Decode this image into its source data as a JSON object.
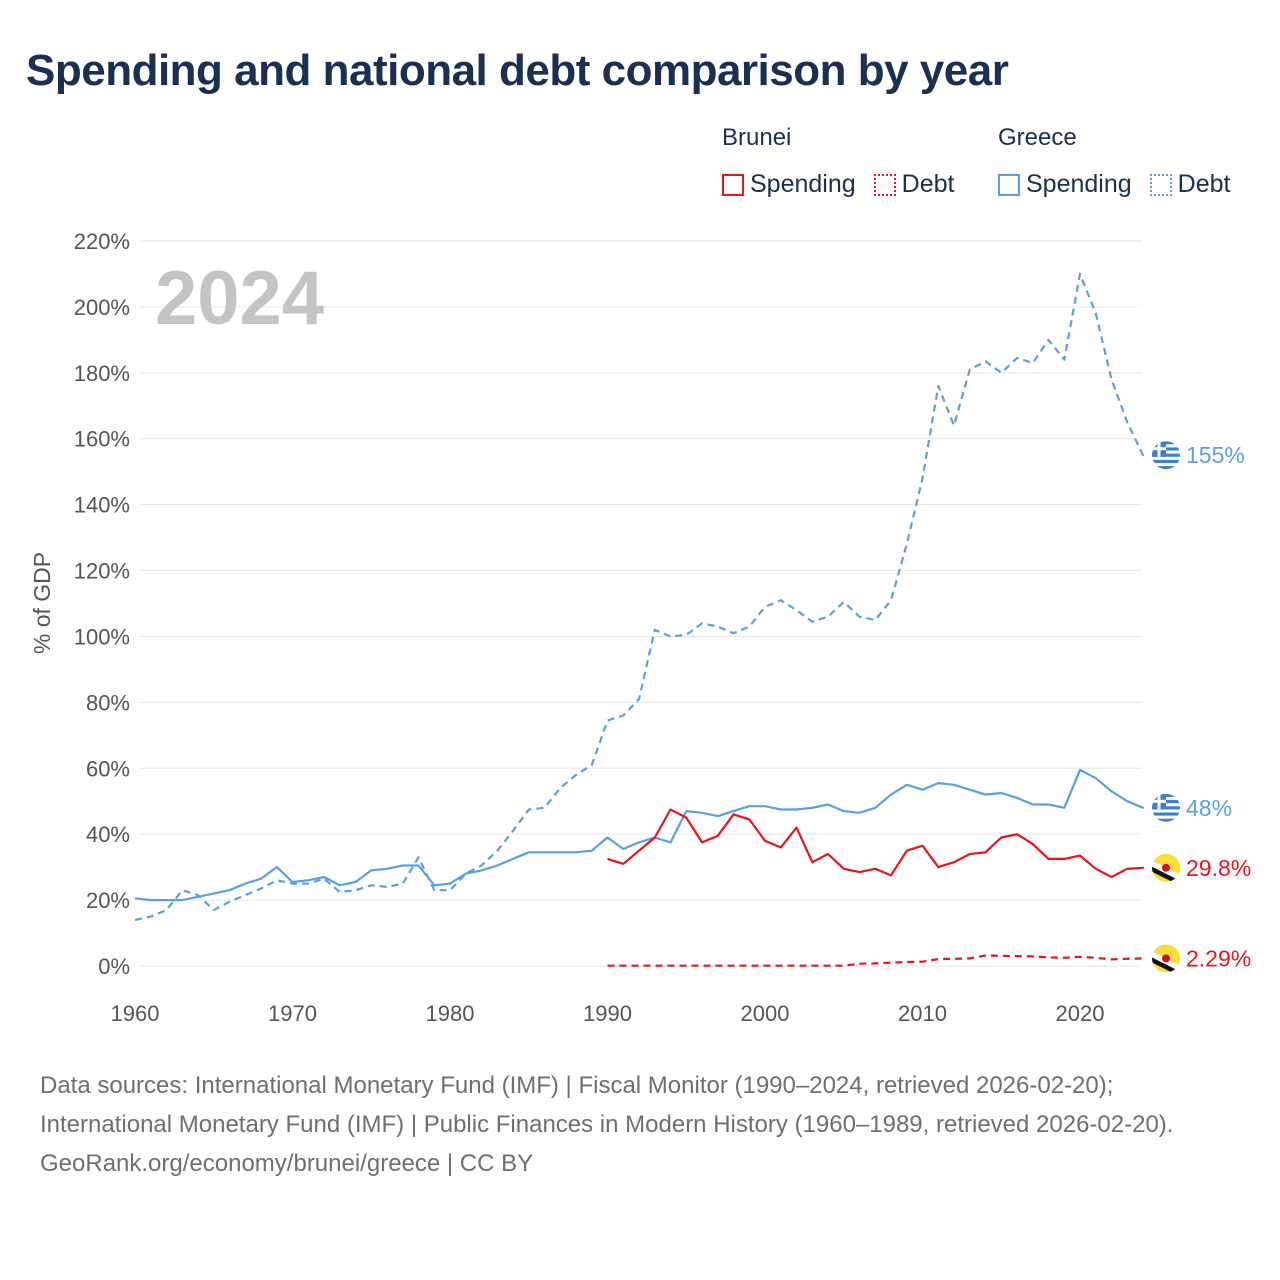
{
  "title": "Spending and national debt comparison by year",
  "year_overlay": "2024",
  "legend": {
    "brunei": {
      "name": "Brunei",
      "spending": "Spending",
      "debt": "Debt",
      "color": "#e8141c"
    },
    "greece": {
      "name": "Greece",
      "spending": "Spending",
      "debt": "Debt",
      "color": "#5aa0e0"
    }
  },
  "footer": {
    "sources": "Data sources: International Monetary Fund (IMF) | Fiscal Monitor (1990–2024, retrieved 2026-02-20); International Monetary Fund (IMF) | Public Finances in Modern History (1960–1989, retrieved 2026-02-20).",
    "attribution": "GeoRank.org/economy/brunei/greece | CC BY"
  },
  "chart_data": {
    "type": "line",
    "ylabel": "% of GDP",
    "xlim": [
      1960,
      2024
    ],
    "ylim": [
      0,
      220
    ],
    "x_ticks": [
      1960,
      1970,
      1980,
      1990,
      2000,
      2010,
      2020
    ],
    "y_ticks": [
      0,
      20,
      40,
      60,
      80,
      100,
      120,
      140,
      160,
      180,
      200,
      220
    ],
    "y_tick_labels": [
      "0%",
      "20%",
      "40%",
      "60%",
      "80%",
      "100%",
      "120%",
      "140%",
      "160%",
      "180%",
      "200%",
      "220%"
    ],
    "series": [
      {
        "name": "Greece Debt",
        "country": "Greece",
        "measure": "Debt",
        "style": "dashed",
        "color": "#5aa0e0",
        "end_label": "155%",
        "x": [
          1960,
          1961,
          1962,
          1963,
          1964,
          1965,
          1966,
          1967,
          1968,
          1969,
          1970,
          1971,
          1972,
          1973,
          1974,
          1975,
          1976,
          1977,
          1978,
          1979,
          1980,
          1981,
          1982,
          1983,
          1984,
          1985,
          1986,
          1987,
          1988,
          1989,
          1990,
          1991,
          1992,
          1993,
          1994,
          1995,
          1996,
          1997,
          1998,
          1999,
          2000,
          2001,
          2002,
          2003,
          2004,
          2005,
          2006,
          2007,
          2008,
          2009,
          2010,
          2011,
          2012,
          2013,
          2014,
          2015,
          2016,
          2017,
          2018,
          2019,
          2020,
          2021,
          2022,
          2023,
          2024
        ],
        "y": [
          14,
          15,
          17,
          23,
          21.5,
          17,
          19.5,
          21.5,
          23.5,
          26,
          25,
          25,
          26.5,
          22.5,
          23,
          24.5,
          24,
          25,
          33,
          23,
          23,
          28,
          30.5,
          35,
          41,
          47.5,
          48,
          54,
          58,
          61,
          74.5,
          76,
          81,
          102,
          100,
          100.5,
          104,
          103,
          101,
          103,
          109,
          111,
          108,
          104.5,
          106,
          110.5,
          106,
          105,
          111,
          128,
          148,
          176,
          164,
          181,
          183.5,
          180,
          184.5,
          183,
          190,
          184,
          210,
          198,
          178,
          165,
          155
        ]
      },
      {
        "name": "Greece Spending",
        "country": "Greece",
        "measure": "Spending",
        "style": "solid",
        "color": "#5aa0e0",
        "end_label": "48%",
        "x": [
          1960,
          1961,
          1962,
          1963,
          1964,
          1965,
          1966,
          1967,
          1968,
          1969,
          1970,
          1971,
          1972,
          1973,
          1974,
          1975,
          1976,
          1977,
          1978,
          1979,
          1980,
          1981,
          1982,
          1983,
          1984,
          1985,
          1986,
          1987,
          1988,
          1989,
          1990,
          1991,
          1992,
          1993,
          1994,
          1995,
          1996,
          1997,
          1998,
          1999,
          2000,
          2001,
          2002,
          2003,
          2004,
          2005,
          2006,
          2007,
          2008,
          2009,
          2010,
          2011,
          2012,
          2013,
          2014,
          2015,
          2016,
          2017,
          2018,
          2019,
          2020,
          2021,
          2022,
          2023,
          2024
        ],
        "y": [
          20.5,
          20,
          20,
          20,
          21,
          22,
          23,
          25,
          26.5,
          30,
          25.5,
          26,
          27,
          24.5,
          25.5,
          29,
          29.5,
          30.5,
          30.5,
          24.5,
          25,
          28,
          29,
          30.5,
          32.5,
          34.5,
          34.5,
          34.5,
          34.5,
          35,
          39,
          35.5,
          37.5,
          39,
          37.5,
          47,
          46.5,
          45.5,
          47,
          48.5,
          48.5,
          47.5,
          47.5,
          48,
          49,
          47,
          46.5,
          48,
          52,
          55,
          53.5,
          55.5,
          55,
          53.5,
          52,
          52.5,
          51,
          49,
          49,
          48,
          59.5,
          57,
          53,
          50,
          48
        ]
      },
      {
        "name": "Brunei Spending",
        "country": "Brunei",
        "measure": "Spending",
        "style": "solid",
        "color": "#e8141c",
        "end_label": "29.8%",
        "x": [
          1990,
          1991,
          1992,
          1993,
          1994,
          1995,
          1996,
          1997,
          1998,
          1999,
          2000,
          2001,
          2002,
          2003,
          2004,
          2005,
          2006,
          2007,
          2008,
          2009,
          2010,
          2011,
          2012,
          2013,
          2014,
          2015,
          2016,
          2017,
          2018,
          2019,
          2020,
          2021,
          2022,
          2023,
          2024
        ],
        "y": [
          32.5,
          31,
          35,
          39,
          47.5,
          45,
          37.5,
          39.5,
          46,
          44.5,
          38,
          36,
          42,
          31.5,
          34,
          29.5,
          28.5,
          29.5,
          27.5,
          35,
          36.5,
          30,
          31.5,
          34,
          34.5,
          39,
          40,
          37,
          32.5,
          32.5,
          33.5,
          29.5,
          27,
          29.5,
          29.8
        ]
      },
      {
        "name": "Brunei Debt",
        "country": "Brunei",
        "measure": "Debt",
        "style": "dashed",
        "color": "#e8141c",
        "end_label": "2.29%",
        "x": [
          1990,
          1991,
          1992,
          1993,
          1994,
          1995,
          1996,
          1997,
          1998,
          1999,
          2000,
          2001,
          2002,
          2003,
          2004,
          2005,
          2006,
          2007,
          2008,
          2009,
          2010,
          2011,
          2012,
          2013,
          2014,
          2015,
          2016,
          2017,
          2018,
          2019,
          2020,
          2021,
          2022,
          2023,
          2024
        ],
        "y": [
          0.1,
          0.1,
          0.1,
          0.1,
          0.1,
          0.1,
          0.1,
          0.1,
          0.1,
          0.1,
          0.1,
          0.1,
          0.1,
          0.1,
          0.1,
          0.1,
          0.7,
          0.8,
          1.0,
          1.2,
          1.3,
          2.1,
          2.2,
          2.3,
          3.2,
          3.1,
          3.0,
          2.9,
          2.6,
          2.5,
          2.8,
          2.5,
          2.0,
          2.2,
          2.29
        ]
      }
    ]
  }
}
